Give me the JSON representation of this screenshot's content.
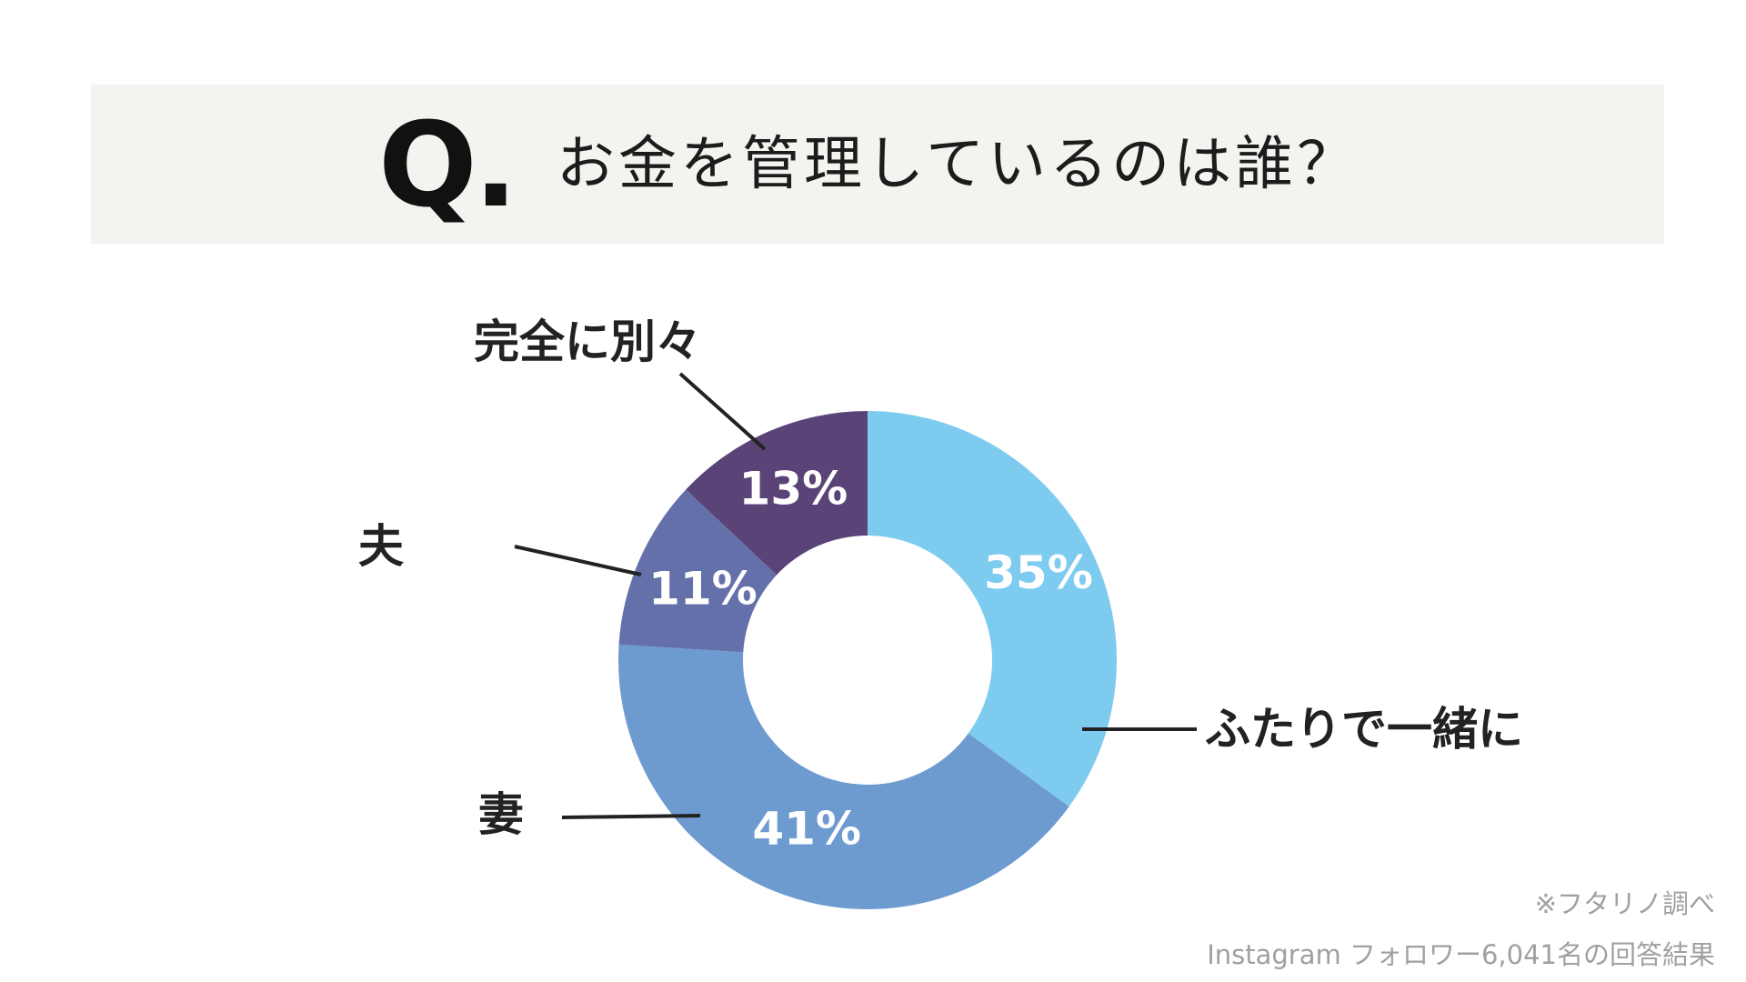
{
  "header": {
    "q_mark": "Q.",
    "question": "お金を管理しているのは誰？"
  },
  "chart_data": {
    "type": "pie",
    "categories": [
      "ふたりで一緒に",
      "妻",
      "夫",
      "完全に別々"
    ],
    "values": [
      35,
      41,
      11,
      13
    ],
    "value_labels": [
      "35%",
      "41%",
      "11%",
      "13%"
    ],
    "colors": [
      "#7ecbf0",
      "#6d9bd0",
      "#6470a9",
      "#5a4377"
    ],
    "value_label_color": "#ffffff",
    "leader_line_color": "#222222",
    "start": "12 o'clock, clockwise",
    "title": "お金を管理しているのは誰？"
  },
  "footer": {
    "source": "※フタリノ調べ",
    "sample": "Instagram フォロワー6,041名の回答結果"
  }
}
